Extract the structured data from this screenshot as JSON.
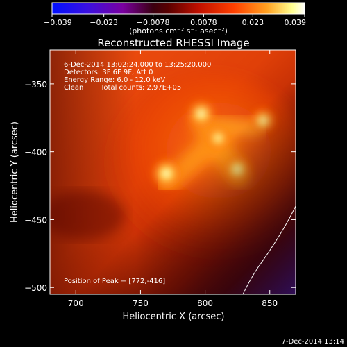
{
  "colorbar": {
    "ticks": [
      "-0.039",
      "-0.023",
      "-0.0078",
      "0.0078",
      "0.023",
      "0.039"
    ],
    "tick_values": [
      -0.039,
      -0.023,
      -0.0078,
      0.0078,
      0.023,
      0.039
    ],
    "range": [
      -0.039,
      0.039
    ],
    "units": "(photons cm⁻² s⁻¹ asec⁻²)",
    "colors": [
      "#0000ff",
      "#6a00b0",
      "#e02000",
      "#ff8000",
      "#ffffff"
    ]
  },
  "image": {
    "title": "Reconstructed RHESSI Image",
    "annotations": {
      "time_range": "6-Dec-2014 13:02:24.000 to 13:25:20.000",
      "detectors": "Detectors: 3F 6F 9F, Att 0",
      "energy_range": "Energy Range: 6.0 - 12.0 keV",
      "algorithm": "Clean",
      "total_counts": "Total counts: 2.97E+05",
      "peak_position": "Position of Peak = [772,-416]"
    },
    "xaxis": {
      "label": "Heliocentric X (arcsec)",
      "range": [
        680,
        870
      ],
      "ticks": [
        700,
        750,
        800,
        850
      ],
      "tick_labels": [
        "700",
        "750",
        "800",
        "850"
      ]
    },
    "yaxis": {
      "label": "Heliocentric Y (arcsec)",
      "range": [
        -505,
        -325
      ],
      "ticks": [
        -350,
        -400,
        -450,
        -500
      ],
      "tick_labels": [
        "−350",
        "−400",
        "−450",
        "−500"
      ]
    },
    "sources": [
      {
        "x": 797,
        "y": -372,
        "brightness": 0.95
      },
      {
        "x": 845,
        "y": -377,
        "brightness": 0.85
      },
      {
        "x": 770,
        "y": -416,
        "brightness": 1.0
      },
      {
        "x": 825,
        "y": -413,
        "brightness": 0.9
      },
      {
        "x": 810,
        "y": -390,
        "brightness": 0.8
      }
    ]
  },
  "footer": {
    "timestamp": "7-Dec-2014 13:14"
  }
}
